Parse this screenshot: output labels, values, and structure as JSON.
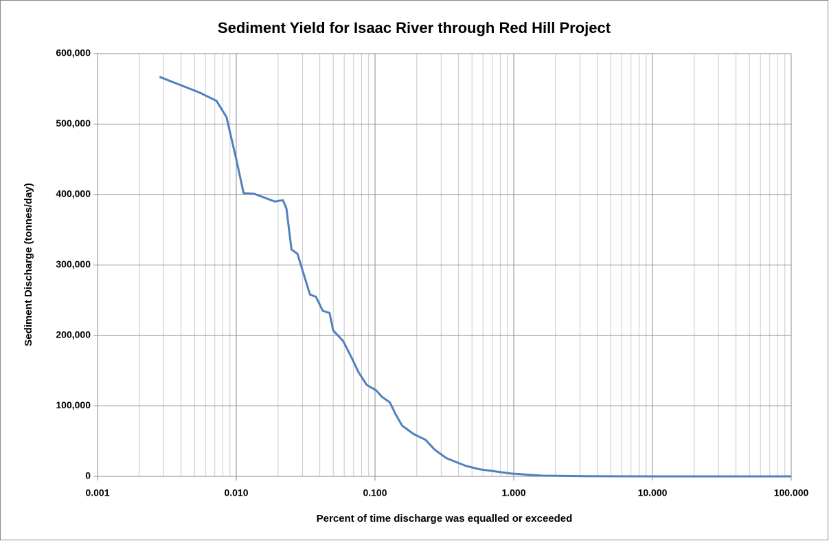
{
  "chart_data": {
    "type": "line",
    "title": "Sediment Yield for Isaac River through Red Hill Project",
    "x_label": "Percent of time discharge was equalled or exceeded",
    "y_label": "Sediment Discharge  (tonnes/day)",
    "x_scale": "log",
    "grid": true,
    "minor_grid": true,
    "xlim": [
      0.001,
      100
    ],
    "xticks": [
      0.001,
      {
        "value": 0.01,
        "label": "0.010"
      },
      {
        "value": 0.1,
        "label": "0.100"
      },
      {
        "value": 1,
        "label": "1.000"
      },
      {
        "value": 10,
        "label": "10.000"
      },
      {
        "value": 100,
        "label": "100.000"
      }
    ],
    "ylim": [
      0,
      600000
    ],
    "yticks": [
      0,
      {
        "value": 100000,
        "label": "100,000"
      },
      {
        "value": 200000,
        "label": "200,000"
      },
      {
        "value": 300000,
        "label": "300,000"
      },
      {
        "value": 400000,
        "label": "400,000"
      },
      {
        "value": 500000,
        "label": "500,000"
      },
      {
        "value": 600000,
        "label": "600,000"
      }
    ],
    "series": [
      {
        "color": "#4f81bd",
        "x": [
          0.0028,
          0.0054,
          0.0072,
          0.0085,
          0.01,
          0.0113,
          0.0135,
          0.019,
          0.0217,
          0.023,
          0.025,
          0.0276,
          0.034,
          0.0375,
          0.042,
          0.047,
          0.05,
          0.059,
          0.068,
          0.076,
          0.087,
          0.102,
          0.112,
          0.128,
          0.14,
          0.157,
          0.19,
          0.231,
          0.269,
          0.326,
          0.45,
          0.57,
          0.96,
          1.62,
          3.2,
          10,
          100
        ],
        "values": [
          567000,
          545000,
          533000,
          510000,
          450000,
          402000,
          401000,
          390000,
          392000,
          380000,
          322000,
          316000,
          258000,
          255000,
          235000,
          232000,
          207000,
          192000,
          168000,
          148000,
          130000,
          122000,
          113000,
          105000,
          89000,
          72000,
          60000,
          52000,
          38000,
          26000,
          15000,
          10000,
          4000,
          1000,
          200,
          50,
          0
        ]
      }
    ]
  }
}
